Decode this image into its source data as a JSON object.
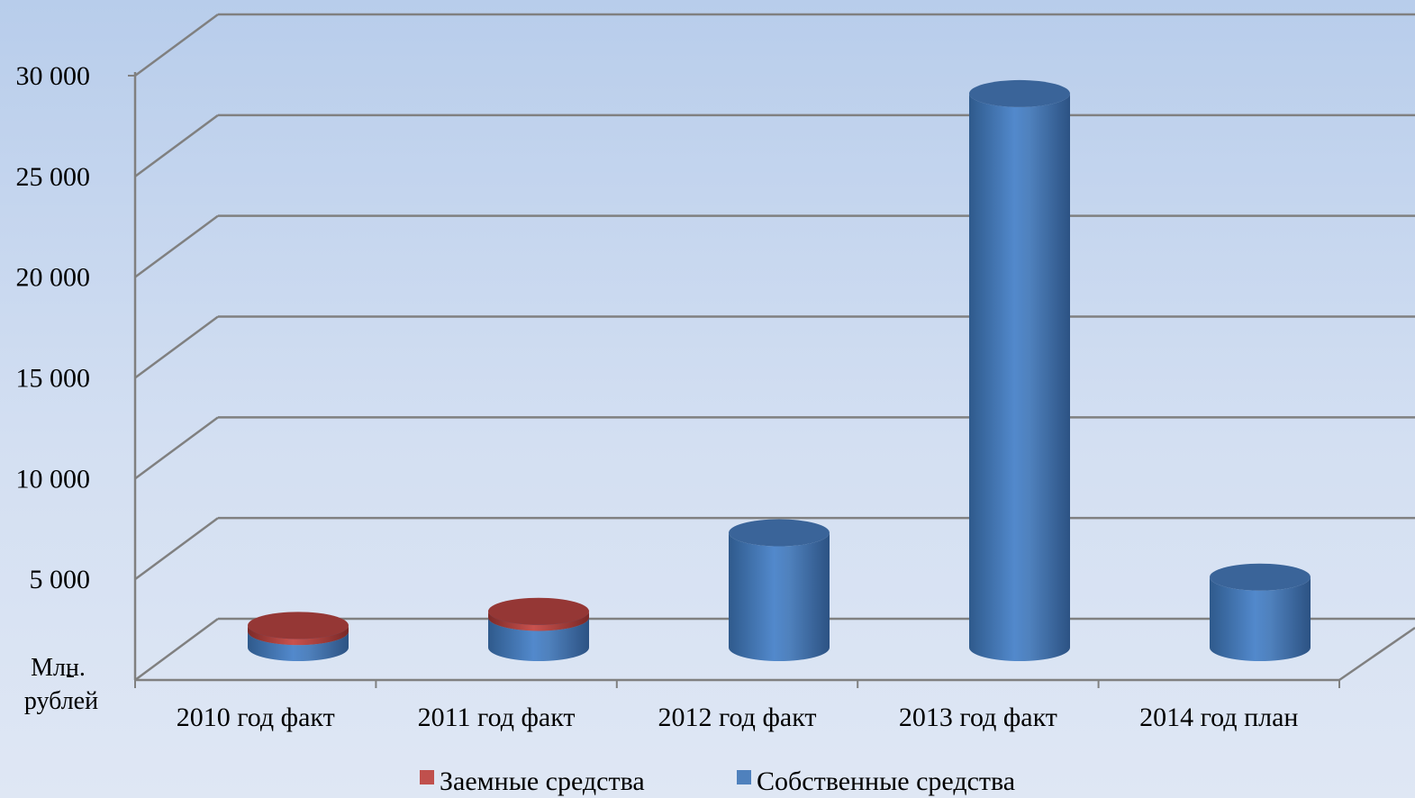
{
  "chart_data": {
    "type": "bar",
    "style": "3d-cylinder-stacked",
    "categories": [
      "2010 год факт",
      "2011 год факт",
      "2012 год факт",
      "2013 год факт",
      "2014 год план"
    ],
    "series": [
      {
        "name": "Собственные средства",
        "values": [
          800,
          1500,
          5700,
          27500,
          3500
        ],
        "color": "#4f81bd"
      },
      {
        "name": "Заемные средства",
        "values": [
          300,
          300,
          0,
          0,
          0
        ],
        "color": "#c0504d"
      }
    ],
    "ylabel": "Млн. рублей",
    "ylim": [
      0,
      30000
    ],
    "yticks": [
      "30 000",
      "25 000",
      "20 000",
      "15 000",
      "10 000",
      "5 000",
      "-"
    ],
    "ytick_values": [
      30000,
      25000,
      20000,
      15000,
      10000,
      5000,
      0
    ],
    "grid": true,
    "legend": {
      "position": "bottom",
      "entries": [
        "Заемные средства",
        "Собственные средства"
      ]
    }
  },
  "colors": {
    "gridline": "#808080",
    "bar_blue": "#4f81bd",
    "bar_red": "#c0504d"
  }
}
